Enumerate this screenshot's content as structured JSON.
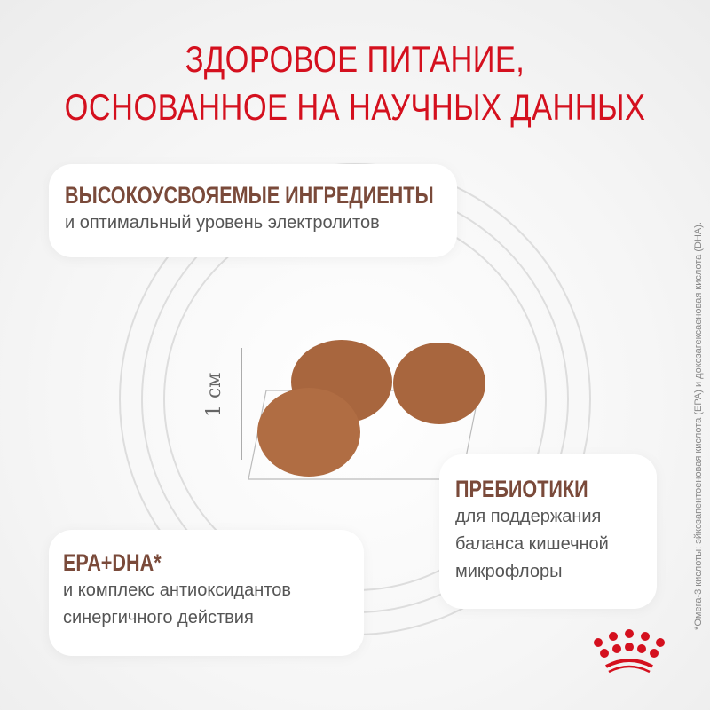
{
  "title": {
    "line1": "ЗДОРОВОЕ ПИТАНИЕ,",
    "line2": "ОСНОВАННОЕ НА НАУЧНЫХ ДАННЫХ"
  },
  "cards": [
    {
      "heading": "ВЫСОКОУСВОЯЕМЫЕ ИНГРЕДИЕНТЫ",
      "lines": [
        "и оптимальный уровень электролитов"
      ]
    },
    {
      "heading": "ПРЕБИОТИКИ",
      "lines": [
        "для поддержания",
        "баланса кишечной",
        "микрофлоры"
      ]
    },
    {
      "heading": "EPA+DHA*",
      "lines": [
        "и комплекс антиоксидантов",
        "синергичного действия"
      ]
    }
  ],
  "scale_label": "1 см",
  "footnote": "*Омега-3 кислоты: эйкозапентоеновая кислота (EPA) и докозагексаеновая кислота (DHA).",
  "logo": "royal-canin-crown",
  "colors": {
    "title": "#d4101e",
    "heading": "#7a4a3a",
    "kibble": "#a8663e"
  }
}
